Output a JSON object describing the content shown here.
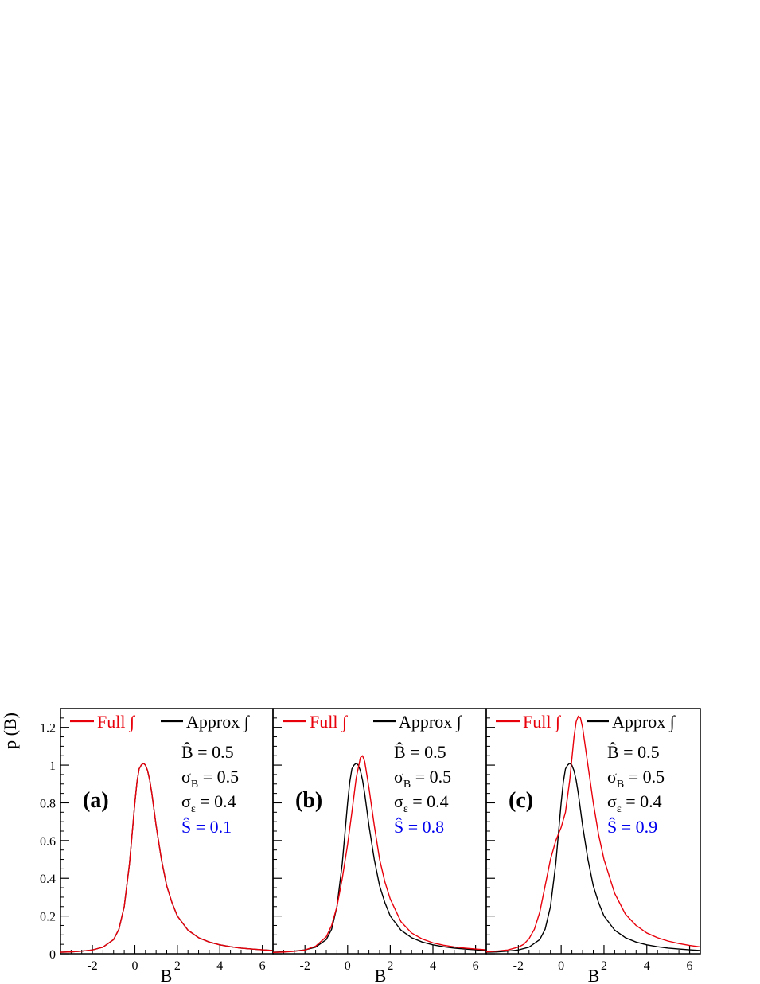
{
  "figure": {
    "ylabel": "p (B)",
    "xlabel": "B"
  },
  "colors": {
    "full": "#e8000b",
    "approx": "#000000",
    "shat": "#0000ee",
    "axes": "#000000"
  },
  "legend": {
    "full_label": "Full",
    "approx_label": "Approx",
    "integral_symbol": "∫"
  },
  "chart_data": [
    {
      "type": "line",
      "panel_label": "(a)",
      "xlabel": "B",
      "ylabel": "p (B)",
      "xlim": [
        -3.5,
        6.5
      ],
      "ylim": [
        0,
        1.3
      ],
      "x_ticks": [
        -2,
        0,
        2,
        4,
        6
      ],
      "y_ticks": [
        0,
        0.2,
        0.4,
        0.6,
        0.8,
        1,
        1.2
      ],
      "params": {
        "bhat": "B̂ = 0.5",
        "sigma_b_main": "σ",
        "sigma_b_sub": "B",
        "sigma_b_val": " = 0.5",
        "sigma_e_main": "σ",
        "sigma_e_sub": "ε",
        "sigma_e_val": " = 0.4",
        "shat": "Ŝ = 0.1"
      },
      "series": [
        {
          "name": "Full ∫",
          "color": "#e8000b",
          "x": [
            -3.5,
            -3,
            -2.5,
            -2,
            -1.5,
            -1,
            -0.75,
            -0.5,
            -0.25,
            0,
            0.1,
            0.2,
            0.3,
            0.4,
            0.5,
            0.6,
            0.7,
            0.8,
            1,
            1.25,
            1.5,
            1.75,
            2,
            2.5,
            3,
            3.5,
            4,
            4.5,
            5,
            5.5,
            6,
            6.5
          ],
          "y": [
            0.008,
            0.01,
            0.014,
            0.02,
            0.035,
            0.075,
            0.13,
            0.25,
            0.48,
            0.8,
            0.91,
            0.98,
            1.0,
            1.01,
            1.0,
            0.97,
            0.92,
            0.85,
            0.68,
            0.5,
            0.36,
            0.27,
            0.2,
            0.125,
            0.085,
            0.062,
            0.047,
            0.037,
            0.03,
            0.025,
            0.021,
            0.017
          ]
        },
        {
          "name": "Approx ∫",
          "color": "#000000",
          "x": [
            -3.5,
            -3,
            -2.5,
            -2,
            -1.5,
            -1,
            -0.75,
            -0.5,
            -0.25,
            0,
            0.1,
            0.2,
            0.3,
            0.4,
            0.5,
            0.6,
            0.7,
            0.8,
            1,
            1.25,
            1.5,
            1.75,
            2,
            2.5,
            3,
            3.5,
            4,
            4.5,
            5,
            5.5,
            6,
            6.5
          ],
          "y": [
            0.008,
            0.01,
            0.014,
            0.02,
            0.035,
            0.075,
            0.13,
            0.25,
            0.48,
            0.8,
            0.91,
            0.98,
            1.0,
            1.01,
            1.0,
            0.97,
            0.92,
            0.85,
            0.68,
            0.5,
            0.36,
            0.27,
            0.2,
            0.125,
            0.085,
            0.062,
            0.047,
            0.037,
            0.03,
            0.025,
            0.021,
            0.017
          ]
        }
      ]
    },
    {
      "type": "line",
      "panel_label": "(b)",
      "xlabel": "B",
      "xlim": [
        -3.5,
        6.5
      ],
      "ylim": [
        0,
        1.3
      ],
      "x_ticks": [
        -2,
        0,
        2,
        4,
        6
      ],
      "params": {
        "bhat": "B̂ = 0.5",
        "sigma_b_main": "σ",
        "sigma_b_sub": "B",
        "sigma_b_val": " = 0.5",
        "sigma_e_main": "σ",
        "sigma_e_sub": "ε",
        "sigma_e_val": " = 0.4",
        "shat": "Ŝ = 0.8"
      },
      "series": [
        {
          "name": "Full ∫",
          "color": "#e8000b",
          "x": [
            -3.5,
            -3,
            -2.5,
            -2,
            -1.5,
            -1,
            -0.75,
            -0.5,
            -0.25,
            0,
            0.2,
            0.4,
            0.6,
            0.7,
            0.8,
            1,
            1.25,
            1.5,
            1.75,
            2,
            2.5,
            3,
            3.5,
            4,
            4.5,
            5,
            5.5,
            6,
            6.5
          ],
          "y": [
            0.007,
            0.009,
            0.013,
            0.02,
            0.04,
            0.09,
            0.15,
            0.25,
            0.4,
            0.58,
            0.75,
            0.93,
            1.04,
            1.05,
            1.02,
            0.88,
            0.68,
            0.5,
            0.38,
            0.29,
            0.17,
            0.11,
            0.078,
            0.058,
            0.045,
            0.036,
            0.03,
            0.025,
            0.021
          ]
        },
        {
          "name": "Approx ∫",
          "color": "#000000",
          "x": [
            -3.5,
            -3,
            -2.5,
            -2,
            -1.5,
            -1,
            -0.75,
            -0.5,
            -0.25,
            0,
            0.1,
            0.2,
            0.3,
            0.4,
            0.5,
            0.6,
            0.7,
            0.8,
            1,
            1.25,
            1.5,
            1.75,
            2,
            2.5,
            3,
            3.5,
            4,
            4.5,
            5,
            5.5,
            6,
            6.5
          ],
          "y": [
            0.008,
            0.01,
            0.014,
            0.02,
            0.035,
            0.075,
            0.13,
            0.25,
            0.48,
            0.8,
            0.91,
            0.98,
            1.0,
            1.01,
            1.0,
            0.97,
            0.92,
            0.85,
            0.68,
            0.5,
            0.36,
            0.27,
            0.2,
            0.125,
            0.085,
            0.062,
            0.047,
            0.037,
            0.03,
            0.025,
            0.021,
            0.017
          ]
        }
      ]
    },
    {
      "type": "line",
      "panel_label": "(c)",
      "xlabel": "B",
      "xlim": [
        -3.5,
        6.5
      ],
      "ylim": [
        0,
        1.3
      ],
      "x_ticks": [
        -2,
        0,
        2,
        4,
        6
      ],
      "params": {
        "bhat": "B̂ = 0.5",
        "sigma_b_main": "σ",
        "sigma_b_sub": "B",
        "sigma_b_val": " = 0.5",
        "sigma_e_main": "σ",
        "sigma_e_sub": "ε",
        "sigma_e_val": " = 0.4",
        "shat": "Ŝ = 0.9"
      },
      "series": [
        {
          "name": "Full ∫",
          "color": "#e8000b",
          "x": [
            -3.5,
            -3,
            -2.5,
            -2,
            -1.75,
            -1.5,
            -1.25,
            -1,
            -0.75,
            -0.5,
            -0.25,
            0,
            0.2,
            0.4,
            0.6,
            0.7,
            0.8,
            0.9,
            1,
            1.25,
            1.5,
            1.75,
            2,
            2.5,
            3,
            3.5,
            4,
            4.5,
            5,
            5.5,
            6,
            6.5
          ],
          "y": [
            0.01,
            0.014,
            0.02,
            0.035,
            0.05,
            0.08,
            0.13,
            0.22,
            0.36,
            0.5,
            0.6,
            0.67,
            0.75,
            0.92,
            1.15,
            1.23,
            1.26,
            1.25,
            1.2,
            1.0,
            0.8,
            0.63,
            0.5,
            0.32,
            0.21,
            0.15,
            0.11,
            0.085,
            0.067,
            0.054,
            0.044,
            0.036
          ]
        },
        {
          "name": "Approx ∫",
          "color": "#000000",
          "x": [
            -3.5,
            -3,
            -2.5,
            -2,
            -1.5,
            -1,
            -0.75,
            -0.5,
            -0.25,
            0,
            0.1,
            0.2,
            0.3,
            0.4,
            0.5,
            0.6,
            0.7,
            0.8,
            1,
            1.25,
            1.5,
            1.75,
            2,
            2.5,
            3,
            3.5,
            4,
            4.5,
            5,
            5.5,
            6,
            6.5
          ],
          "y": [
            0.008,
            0.01,
            0.014,
            0.02,
            0.035,
            0.075,
            0.13,
            0.25,
            0.48,
            0.8,
            0.91,
            0.98,
            1.0,
            1.01,
            1.0,
            0.97,
            0.92,
            0.85,
            0.68,
            0.5,
            0.36,
            0.27,
            0.2,
            0.125,
            0.085,
            0.062,
            0.047,
            0.037,
            0.03,
            0.025,
            0.021,
            0.017
          ]
        }
      ]
    }
  ]
}
